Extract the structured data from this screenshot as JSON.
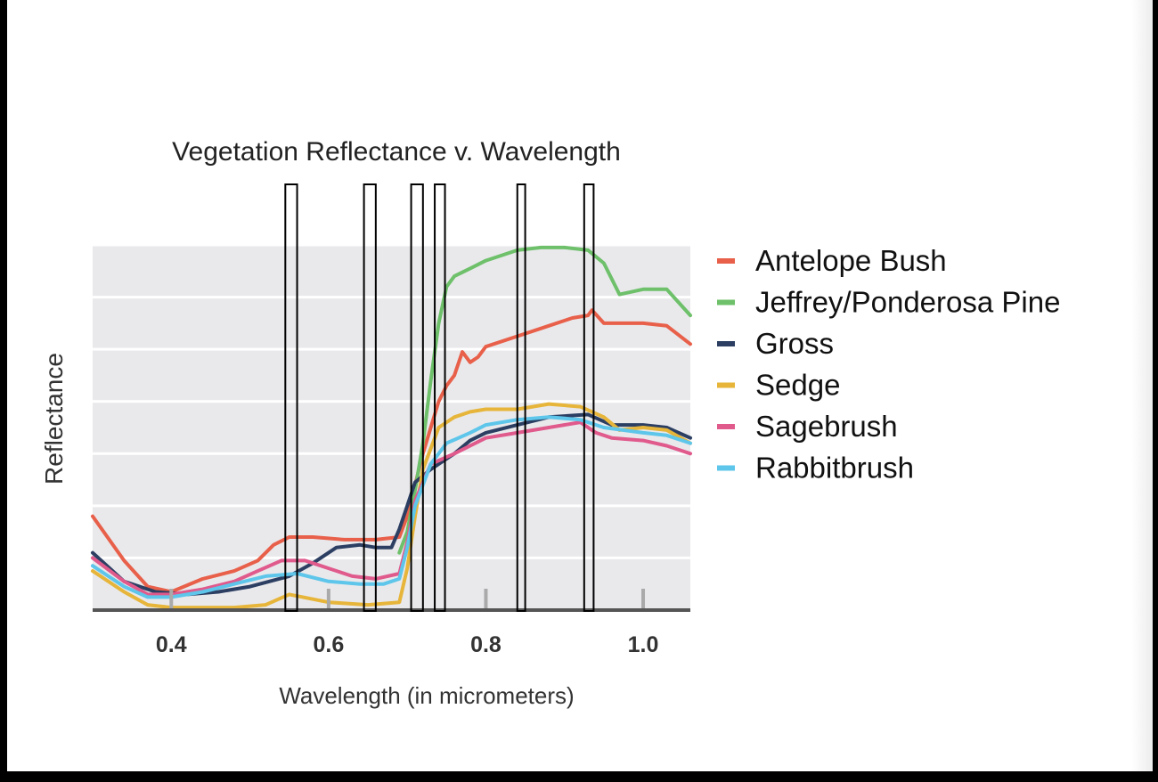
{
  "chart_data": {
    "type": "line",
    "title": "Vegetation Reflectance v. Wavelength",
    "xlabel": "Wavelength (in micrometers)",
    "ylabel": "Reflectance",
    "xlim": [
      0.3,
      1.06
    ],
    "ylim": [
      0,
      7
    ],
    "x_ticks": [
      0.4,
      0.6,
      0.8,
      1.0
    ],
    "x_tick_labels": [
      "0.4",
      "0.6",
      "0.8",
      "1.0"
    ],
    "grid": true,
    "y_gridlines": [
      1,
      2,
      3,
      4,
      5,
      6,
      7
    ],
    "legend_position": "right",
    "band_boxes": [
      [
        0.545,
        0.56
      ],
      [
        0.645,
        0.66
      ],
      [
        0.705,
        0.72
      ],
      [
        0.735,
        0.748
      ],
      [
        0.84,
        0.85
      ],
      [
        0.925,
        0.937
      ]
    ],
    "series": [
      {
        "name": "Antelope Bush",
        "color": "#e8604a",
        "x": [
          0.3,
          0.34,
          0.37,
          0.4,
          0.44,
          0.48,
          0.51,
          0.53,
          0.55,
          0.58,
          0.62,
          0.66,
          0.69,
          0.7,
          0.71,
          0.72,
          0.73,
          0.74,
          0.75,
          0.76,
          0.77,
          0.78,
          0.79,
          0.8,
          0.84,
          0.88,
          0.91,
          0.93,
          0.935,
          0.95,
          1.0,
          1.03,
          1.06
        ],
        "y": [
          1.8,
          0.95,
          0.45,
          0.35,
          0.6,
          0.75,
          0.95,
          1.25,
          1.4,
          1.4,
          1.35,
          1.35,
          1.4,
          1.8,
          2.4,
          3.0,
          3.5,
          4.0,
          4.3,
          4.5,
          4.95,
          4.75,
          4.85,
          5.05,
          5.25,
          5.45,
          5.6,
          5.65,
          5.75,
          5.5,
          5.5,
          5.45,
          5.1
        ]
      },
      {
        "name": "Jeffrey/Ponderosa Pine",
        "color": "#6ec06a",
        "x": [
          0.69,
          0.7,
          0.71,
          0.72,
          0.73,
          0.74,
          0.75,
          0.76,
          0.78,
          0.8,
          0.84,
          0.87,
          0.9,
          0.93,
          0.95,
          0.97,
          1.0,
          1.03,
          1.06
        ],
        "y": [
          1.1,
          1.5,
          2.3,
          3.2,
          4.4,
          5.5,
          6.2,
          6.4,
          6.55,
          6.7,
          6.9,
          6.95,
          6.95,
          6.9,
          6.65,
          6.05,
          6.15,
          6.15,
          5.65
        ]
      },
      {
        "name": "Gross",
        "color": "#2c3f63",
        "x": [
          0.3,
          0.34,
          0.38,
          0.42,
          0.46,
          0.5,
          0.55,
          0.58,
          0.61,
          0.64,
          0.66,
          0.68,
          0.69,
          0.7,
          0.71,
          0.73,
          0.76,
          0.78,
          0.8,
          0.84,
          0.88,
          0.93,
          0.96,
          1.0,
          1.03,
          1.06
        ],
        "y": [
          1.1,
          0.55,
          0.35,
          0.3,
          0.35,
          0.45,
          0.65,
          0.9,
          1.2,
          1.25,
          1.2,
          1.2,
          1.55,
          2.0,
          2.45,
          2.7,
          3.0,
          3.25,
          3.4,
          3.55,
          3.7,
          3.75,
          3.55,
          3.55,
          3.5,
          3.3
        ]
      },
      {
        "name": "Sedge",
        "color": "#e6b53a",
        "x": [
          0.3,
          0.34,
          0.37,
          0.4,
          0.44,
          0.48,
          0.52,
          0.55,
          0.6,
          0.65,
          0.69,
          0.7,
          0.71,
          0.72,
          0.74,
          0.76,
          0.78,
          0.8,
          0.84,
          0.88,
          0.92,
          0.95,
          0.97,
          1.0,
          1.03,
          1.06
        ],
        "y": [
          0.75,
          0.35,
          0.1,
          0.05,
          0.05,
          0.05,
          0.1,
          0.3,
          0.15,
          0.1,
          0.15,
          0.8,
          1.8,
          2.7,
          3.5,
          3.7,
          3.8,
          3.85,
          3.85,
          3.95,
          3.9,
          3.7,
          3.45,
          3.5,
          3.45,
          3.2
        ]
      },
      {
        "name": "Sagebrush",
        "color": "#e05a8c",
        "x": [
          0.3,
          0.34,
          0.37,
          0.4,
          0.44,
          0.48,
          0.51,
          0.54,
          0.57,
          0.6,
          0.63,
          0.66,
          0.69,
          0.7,
          0.71,
          0.73,
          0.76,
          0.78,
          0.8,
          0.84,
          0.88,
          0.92,
          0.94,
          0.96,
          1.0,
          1.03,
          1.06
        ],
        "y": [
          1.0,
          0.55,
          0.3,
          0.3,
          0.4,
          0.55,
          0.75,
          0.95,
          0.95,
          0.8,
          0.65,
          0.6,
          0.7,
          1.3,
          2.1,
          2.8,
          3.0,
          3.15,
          3.3,
          3.4,
          3.5,
          3.6,
          3.4,
          3.3,
          3.25,
          3.15,
          3.0
        ]
      },
      {
        "name": "Rabbitbrush",
        "color": "#5ec6ea",
        "x": [
          0.3,
          0.34,
          0.37,
          0.4,
          0.44,
          0.48,
          0.52,
          0.56,
          0.6,
          0.64,
          0.67,
          0.69,
          0.7,
          0.71,
          0.73,
          0.75,
          0.78,
          0.8,
          0.84,
          0.88,
          0.92,
          0.95,
          1.0,
          1.03,
          1.06
        ],
        "y": [
          0.85,
          0.45,
          0.25,
          0.25,
          0.35,
          0.5,
          0.65,
          0.7,
          0.55,
          0.5,
          0.5,
          0.6,
          1.2,
          2.0,
          2.8,
          3.2,
          3.4,
          3.55,
          3.65,
          3.7,
          3.65,
          3.5,
          3.4,
          3.35,
          3.2
        ]
      }
    ]
  }
}
